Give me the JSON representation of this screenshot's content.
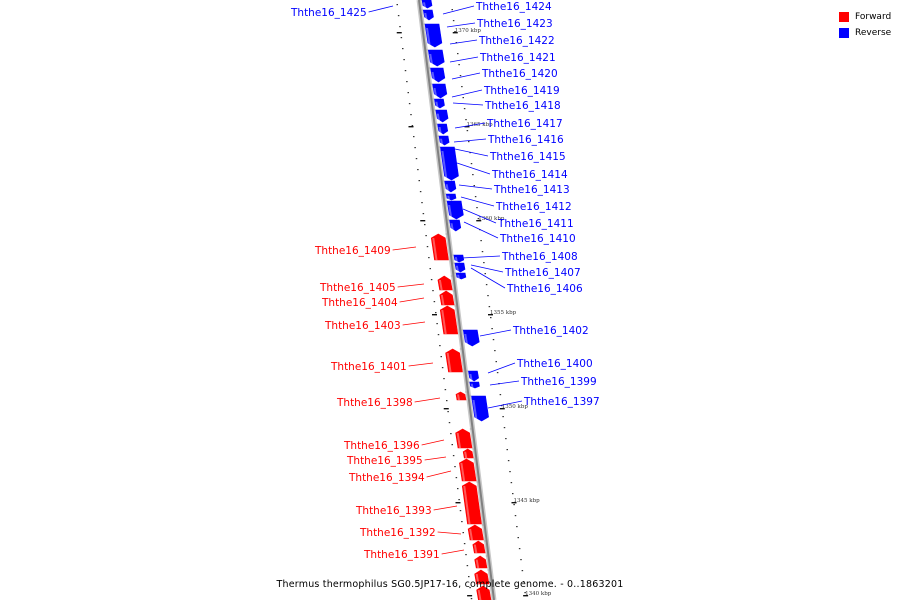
{
  "caption": "Thermus thermophilus SG0.5JP17-16, complete genome. - 0..1863201",
  "legend": [
    {
      "label": "Forward",
      "color": "#ff0000"
    },
    {
      "label": "Reverse",
      "color": "#0000ff"
    }
  ],
  "colors": {
    "forward": "#ff0000",
    "reverse": "#0000ff",
    "backbone": "#808080"
  },
  "scale_labels": [
    "1370 kbp",
    "1365 kbp",
    "1360 kbp",
    "1355 kbp",
    "1350 kbp",
    "1345 kbp",
    "1340 kbp"
  ],
  "genes": [
    {
      "name": "Ththe16_1425",
      "strand": "reverse"
    },
    {
      "name": "Ththe16_1424",
      "strand": "reverse"
    },
    {
      "name": "Ththe16_1423",
      "strand": "reverse"
    },
    {
      "name": "Ththe16_1422",
      "strand": "reverse"
    },
    {
      "name": "Ththe16_1421",
      "strand": "reverse"
    },
    {
      "name": "Ththe16_1420",
      "strand": "reverse"
    },
    {
      "name": "Ththe16_1419",
      "strand": "reverse"
    },
    {
      "name": "Ththe16_1418",
      "strand": "reverse"
    },
    {
      "name": "Ththe16_1417",
      "strand": "reverse"
    },
    {
      "name": "Ththe16_1416",
      "strand": "reverse"
    },
    {
      "name": "Ththe16_1415",
      "strand": "reverse"
    },
    {
      "name": "Ththe16_1414",
      "strand": "reverse"
    },
    {
      "name": "Ththe16_1413",
      "strand": "reverse"
    },
    {
      "name": "Ththe16_1412",
      "strand": "reverse"
    },
    {
      "name": "Ththe16_1411",
      "strand": "reverse"
    },
    {
      "name": "Ththe16_1410",
      "strand": "reverse"
    },
    {
      "name": "Ththe16_1409",
      "strand": "forward"
    },
    {
      "name": "Ththe16_1408",
      "strand": "reverse"
    },
    {
      "name": "Ththe16_1407",
      "strand": "reverse"
    },
    {
      "name": "Ththe16_1406",
      "strand": "reverse"
    },
    {
      "name": "Ththe16_1405",
      "strand": "forward"
    },
    {
      "name": "Ththe16_1404",
      "strand": "forward"
    },
    {
      "name": "Ththe16_1403",
      "strand": "forward"
    },
    {
      "name": "Ththe16_1402",
      "strand": "reverse"
    },
    {
      "name": "Ththe16_1401",
      "strand": "forward"
    },
    {
      "name": "Ththe16_1400",
      "strand": "reverse"
    },
    {
      "name": "Ththe16_1399",
      "strand": "reverse"
    },
    {
      "name": "Ththe16_1398",
      "strand": "forward"
    },
    {
      "name": "Ththe16_1397",
      "strand": "reverse"
    },
    {
      "name": "Ththe16_1396",
      "strand": "forward"
    },
    {
      "name": "Ththe16_1395",
      "strand": "forward"
    },
    {
      "name": "Ththe16_1394",
      "strand": "forward"
    },
    {
      "name": "Ththe16_1393",
      "strand": "forward"
    },
    {
      "name": "Ththe16_1392",
      "strand": "forward"
    },
    {
      "name": "Ththe16_1391",
      "strand": "forward"
    }
  ]
}
